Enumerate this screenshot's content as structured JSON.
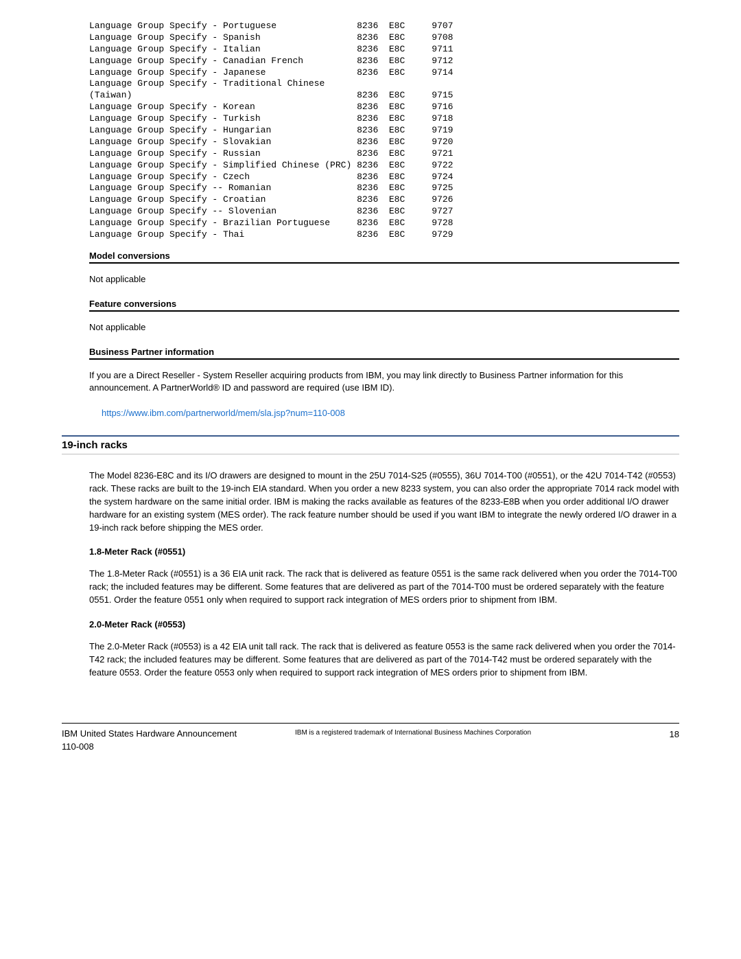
{
  "lang_rows": [
    {
      "desc": "Language Group Specify - Portuguese",
      "c1": "8236",
      "c2": "E8C",
      "c3": "9707"
    },
    {
      "desc": "Language Group Specify - Spanish",
      "c1": "8236",
      "c2": "E8C",
      "c3": "9708"
    },
    {
      "desc": "Language Group Specify - Italian",
      "c1": "8236",
      "c2": "E8C",
      "c3": "9711"
    },
    {
      "desc": "Language Group Specify - Canadian French",
      "c1": "8236",
      "c2": "E8C",
      "c3": "9712"
    },
    {
      "desc": "Language Group Specify - Japanese",
      "c1": "8236",
      "c2": "E8C",
      "c3": "9714"
    },
    {
      "desc": "Language Group Specify - Traditional Chinese",
      "c1": "",
      "c2": "",
      "c3": ""
    },
    {
      "desc": "(Taiwan)",
      "c1": "8236",
      "c2": "E8C",
      "c3": "9715"
    },
    {
      "desc": "Language Group Specify - Korean",
      "c1": "8236",
      "c2": "E8C",
      "c3": "9716"
    },
    {
      "desc": "Language Group Specify - Turkish",
      "c1": "8236",
      "c2": "E8C",
      "c3": "9718"
    },
    {
      "desc": "Language Group Specify - Hungarian",
      "c1": "8236",
      "c2": "E8C",
      "c3": "9719"
    },
    {
      "desc": "Language Group Specify - Slovakian",
      "c1": "8236",
      "c2": "E8C",
      "c3": "9720"
    },
    {
      "desc": "Language Group Specify - Russian",
      "c1": "8236",
      "c2": "E8C",
      "c3": "9721"
    },
    {
      "desc": "Language Group Specify - Simplified Chinese (PRC)",
      "c1": "8236",
      "c2": "E8C",
      "c3": "9722"
    },
    {
      "desc": "Language Group Specify - Czech",
      "c1": "8236",
      "c2": "E8C",
      "c3": "9724"
    },
    {
      "desc": "Language Group Specify -- Romanian",
      "c1": "8236",
      "c2": "E8C",
      "c3": "9725"
    },
    {
      "desc": "Language Group Specify - Croatian",
      "c1": "8236",
      "c2": "E8C",
      "c3": "9726"
    },
    {
      "desc": "Language Group Specify -- Slovenian",
      "c1": "8236",
      "c2": "E8C",
      "c3": "9727"
    },
    {
      "desc": "Language Group Specify - Brazilian Portuguese",
      "c1": "8236",
      "c2": "E8C",
      "c3": "9728"
    },
    {
      "desc": "Language Group Specify - Thai",
      "c1": "8236",
      "c2": "E8C",
      "c3": "9729"
    }
  ],
  "col_widths": {
    "desc": 50,
    "c1": 6,
    "c2": 8
  },
  "model_conv": {
    "title": "Model conversions",
    "body": "Not applicable"
  },
  "feat_conv": {
    "title": "Feature conversions",
    "body": "Not applicable"
  },
  "bp": {
    "title": "Business Partner information",
    "body": "If you are a Direct Reseller - System Reseller acquiring products from IBM, you may link directly to Business Partner information for this announcement. A PartnerWorld® ID and password are required (use IBM ID).",
    "link": "https://www.ibm.com/partnerworld/mem/sla.jsp?num=110-008"
  },
  "racks": {
    "title": "19-inch racks",
    "intro": "The Model 8236-E8C and its I/O drawers are designed to mount in the 25U 7014-S25 (#0555), 36U 7014-T00 (#0551), or the 42U 7014-T42 (#0553) rack. These racks are built to the 19-inch EIA standard. When you order a new 8233 system, you can also order the appropriate 7014 rack model with the system hardware on the same initial order. IBM is making the racks available as features of the 8233-E8B when you order additional I/O drawer hardware for an existing system (MES order). The rack feature number should be used if you want IBM to integrate the newly ordered I/O drawer in a 19-inch rack before shipping the MES order.",
    "r18": {
      "title": "1.8-Meter Rack (#0551)",
      "body": "The 1.8-Meter Rack (#0551) is a 36 EIA unit rack. The rack that is delivered as feature 0551 is the same rack delivered when you order the 7014-T00 rack; the included features may be different. Some features that are delivered as part of the 7014-T00 must be ordered separately with the feature 0551. Order the feature 0551 only when required to support rack integration of MES orders prior to shipment from IBM."
    },
    "r20": {
      "title": "2.0-Meter Rack (#0553)",
      "body": "The 2.0-Meter Rack (#0553) is a 42 EIA unit tall rack. The rack that is delivered as feature 0553 is the same rack delivered when you order the 7014-T42 rack; the included features may be different. Some features that are delivered as part of the 7014-T42 must be ordered separately with the feature 0553. Order the feature 0553 only when required to support rack integration of MES orders prior to shipment from IBM."
    }
  },
  "footer": {
    "left1": "IBM United States Hardware Announcement",
    "left2": "110-008",
    "mid": "IBM is a registered trademark of International Business Machines Corporation",
    "page": "18"
  }
}
